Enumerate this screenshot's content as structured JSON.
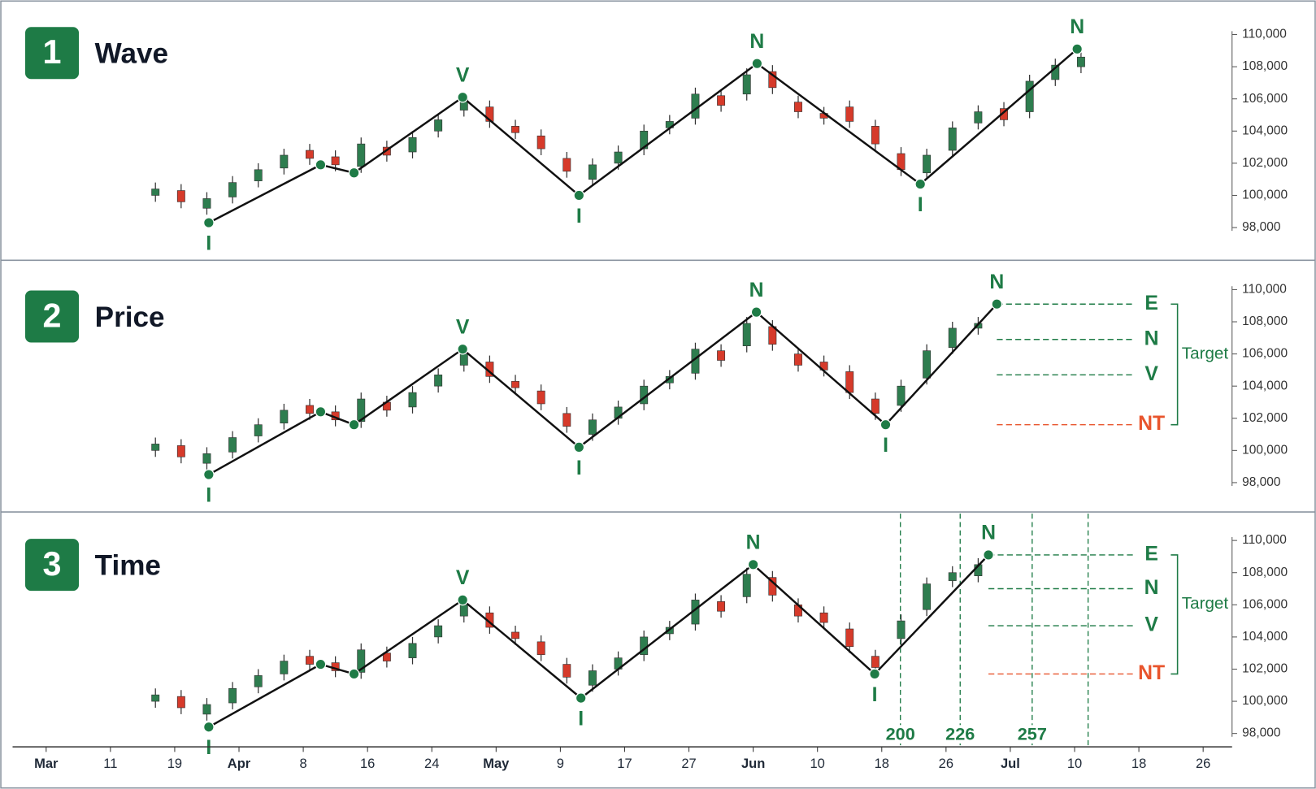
{
  "chart_data": [
    {
      "type": "candlestick",
      "number": "1",
      "title": "Wave",
      "xlim": [
        -0.5,
        18.45
      ],
      "ylim": [
        97500,
        110500
      ],
      "yticks": [
        {
          "value": 98000,
          "label": "98,000"
        },
        {
          "value": 100000,
          "label": "100,000"
        },
        {
          "value": 102000,
          "label": "102,000"
        },
        {
          "value": 104000,
          "label": "104,000"
        },
        {
          "value": 106000,
          "label": "106,000"
        },
        {
          "value": 108000,
          "label": "108,000"
        },
        {
          "value": 110000,
          "label": "110,000"
        }
      ],
      "up_color": "#2e7d4f",
      "down_color": "#d63a2a",
      "line_color": "#111111",
      "accent_color": "#1e7b46",
      "x": [
        1.7,
        2.1,
        2.5,
        2.9,
        3.3,
        3.7,
        4.1,
        4.5,
        4.9,
        5.3,
        5.7,
        6.1,
        6.5,
        6.9,
        7.3,
        7.7,
        8.1,
        8.5,
        8.9,
        9.3,
        9.7,
        10.1,
        10.5,
        10.9,
        11.3,
        11.7,
        12.1,
        12.5,
        12.9,
        13.3,
        13.7,
        14.1,
        14.5,
        14.9,
        15.3,
        15.7,
        16.1
      ],
      "open": [
        100000,
        100300,
        99200,
        99900,
        100900,
        101700,
        102800,
        102400,
        101800,
        103000,
        102700,
        104000,
        105300,
        105500,
        104300,
        103700,
        102300,
        101000,
        102000,
        102900,
        104200,
        104800,
        106200,
        106300,
        107700,
        105800,
        105100,
        105500,
        104300,
        102600,
        101400,
        102800,
        104500,
        105400,
        105200,
        107200,
        108000
      ],
      "high": [
        100800,
        100700,
        100200,
        101200,
        102000,
        102900,
        103200,
        102800,
        103600,
        103400,
        104000,
        105100,
        106400,
        105900,
        104700,
        104100,
        102700,
        102300,
        103100,
        104400,
        105000,
        106700,
        106600,
        107900,
        108100,
        106200,
        105500,
        105900,
        104700,
        103000,
        102900,
        104600,
        105600,
        105800,
        107500,
        108500,
        109000
      ],
      "low": [
        99600,
        99200,
        98800,
        99500,
        100500,
        101300,
        101900,
        101500,
        101400,
        102100,
        102300,
        103600,
        104900,
        104200,
        103500,
        102500,
        101100,
        100600,
        101600,
        102500,
        103800,
        104400,
        105200,
        105900,
        106300,
        104800,
        104400,
        104200,
        102800,
        101200,
        101000,
        102400,
        104100,
        104300,
        104800,
        106800,
        107600
      ],
      "close": [
        100400,
        99600,
        99800,
        100800,
        101600,
        102500,
        102300,
        101900,
        103200,
        102500,
        103600,
        104700,
        106000,
        104600,
        103900,
        102900,
        101500,
        101900,
        102700,
        104000,
        104600,
        106300,
        105600,
        107500,
        106700,
        105200,
        104800,
        104600,
        103200,
        101600,
        102500,
        104200,
        105200,
        104700,
        107100,
        108100,
        108600
      ],
      "wave": {
        "x": [
          2.53,
          4.27,
          4.79,
          6.48,
          8.29,
          11.06,
          13.6,
          16.04
        ],
        "y": [
          98300,
          101900,
          101400,
          106100,
          100000,
          108200,
          100700,
          109100
        ],
        "labels": [
          "I",
          null,
          null,
          "V",
          "I",
          "N",
          "I",
          "N"
        ]
      }
    },
    {
      "type": "candlestick",
      "number": "2",
      "title": "Price",
      "xlim": [
        -0.5,
        18.45
      ],
      "ylim": [
        97500,
        110500
      ],
      "yticks": [
        {
          "value": 98000,
          "label": "98,000"
        },
        {
          "value": 100000,
          "label": "100,000"
        },
        {
          "value": 102000,
          "label": "102,000"
        },
        {
          "value": 104000,
          "label": "104,000"
        },
        {
          "value": 106000,
          "label": "106,000"
        },
        {
          "value": 108000,
          "label": "108,000"
        },
        {
          "value": 110000,
          "label": "110,000"
        }
      ],
      "up_color": "#2e7d4f",
      "down_color": "#d63a2a",
      "line_color": "#111111",
      "accent_color": "#1e7b46",
      "x": [
        1.7,
        2.1,
        2.5,
        2.9,
        3.3,
        3.7,
        4.1,
        4.5,
        4.9,
        5.3,
        5.7,
        6.1,
        6.5,
        6.9,
        7.3,
        7.7,
        8.1,
        8.5,
        8.9,
        9.3,
        9.7,
        10.1,
        10.5,
        10.9,
        11.3,
        11.7,
        12.1,
        12.5,
        12.9,
        13.3,
        13.7,
        14.1,
        14.5
      ],
      "open": [
        100000,
        100300,
        99200,
        99900,
        100900,
        101700,
        102800,
        102400,
        101800,
        103000,
        102700,
        104000,
        105300,
        105500,
        104300,
        103700,
        102300,
        101000,
        102000,
        102900,
        104200,
        104800,
        106200,
        106500,
        107700,
        106000,
        105500,
        104900,
        103200,
        102800,
        104500,
        106400,
        107600
      ],
      "high": [
        100800,
        100700,
        100200,
        101200,
        102000,
        102900,
        103200,
        102800,
        103600,
        103400,
        104000,
        105100,
        106400,
        105900,
        104700,
        104100,
        102700,
        102300,
        103100,
        104400,
        105000,
        106700,
        106600,
        108300,
        108100,
        106400,
        105900,
        105300,
        103600,
        104400,
        106600,
        108000,
        108300
      ],
      "low": [
        99600,
        99200,
        98800,
        99500,
        100500,
        101300,
        101900,
        101500,
        101400,
        102100,
        102300,
        103600,
        104900,
        104200,
        103500,
        102500,
        101100,
        100600,
        101600,
        102500,
        103800,
        104400,
        105200,
        106100,
        106200,
        104900,
        104600,
        103200,
        101900,
        102400,
        104100,
        106000,
        107200
      ],
      "close": [
        100400,
        99600,
        99800,
        100800,
        101600,
        102500,
        102300,
        101900,
        103200,
        102500,
        103600,
        104700,
        106000,
        104600,
        103900,
        102900,
        101500,
        101900,
        102700,
        104000,
        104600,
        106300,
        105600,
        107900,
        106600,
        105300,
        105000,
        103600,
        102300,
        104000,
        106200,
        107600,
        107900
      ],
      "wave": {
        "x": [
          2.53,
          4.27,
          4.79,
          6.48,
          8.29,
          11.05,
          13.06,
          14.79
        ],
        "y": [
          98500,
          102400,
          101600,
          106300,
          100200,
          108600,
          101600,
          109100
        ],
        "labels": [
          "I",
          null,
          null,
          "V",
          "I",
          "N",
          "I",
          "N"
        ]
      },
      "targets": [
        {
          "label": "E",
          "value": 109100,
          "color": "#1e7b46"
        },
        {
          "label": "N",
          "value": 106900,
          "color": "#1e7b46"
        },
        {
          "label": "V",
          "value": 104700,
          "color": "#1e7b46"
        },
        {
          "label": "NT",
          "value": 101600,
          "color": "#e8552d"
        }
      ],
      "target_title": "Target"
    },
    {
      "type": "candlestick",
      "number": "3",
      "title": "Time",
      "xlim": [
        -0.5,
        18.45
      ],
      "ylim": [
        97500,
        110500
      ],
      "yticks": [
        {
          "value": 98000,
          "label": "98,000"
        },
        {
          "value": 100000,
          "label": "100,000"
        },
        {
          "value": 102000,
          "label": "102,000"
        },
        {
          "value": 104000,
          "label": "104,000"
        },
        {
          "value": 106000,
          "label": "106,000"
        },
        {
          "value": 108000,
          "label": "108,000"
        },
        {
          "value": 110000,
          "label": "110,000"
        }
      ],
      "xticks": [
        {
          "value": 0,
          "label": "Mar"
        },
        {
          "value": 1,
          "label": "11"
        },
        {
          "value": 2,
          "label": "19"
        },
        {
          "value": 3,
          "label": "Apr"
        },
        {
          "value": 4,
          "label": "8"
        },
        {
          "value": 5,
          "label": "16"
        },
        {
          "value": 6,
          "label": "24"
        },
        {
          "value": 7,
          "label": "May"
        },
        {
          "value": 8,
          "label": "9"
        },
        {
          "value": 9,
          "label": "17"
        },
        {
          "value": 10,
          "label": "27"
        },
        {
          "value": 11,
          "label": "Jun"
        },
        {
          "value": 12,
          "label": "10"
        },
        {
          "value": 13,
          "label": "18"
        },
        {
          "value": 14,
          "label": "26"
        },
        {
          "value": 15,
          "label": "Jul"
        },
        {
          "value": 16,
          "label": "10"
        },
        {
          "value": 17,
          "label": "18"
        },
        {
          "value": 18,
          "label": "26"
        }
      ],
      "up_color": "#2e7d4f",
      "down_color": "#d63a2a",
      "line_color": "#111111",
      "accent_color": "#1e7b46",
      "x": [
        1.7,
        2.1,
        2.5,
        2.9,
        3.3,
        3.7,
        4.1,
        4.5,
        4.9,
        5.3,
        5.7,
        6.1,
        6.5,
        6.9,
        7.3,
        7.7,
        8.1,
        8.5,
        8.9,
        9.3,
        9.7,
        10.1,
        10.5,
        10.9,
        11.3,
        11.7,
        12.1,
        12.5,
        12.9,
        13.3,
        13.7,
        14.1,
        14.5
      ],
      "open": [
        100000,
        100300,
        99200,
        99900,
        100900,
        101700,
        102800,
        102400,
        101800,
        103000,
        102700,
        104000,
        105300,
        105500,
        104300,
        103700,
        102300,
        101000,
        102000,
        102900,
        104200,
        104800,
        106200,
        106500,
        107700,
        106000,
        105500,
        104500,
        102800,
        103900,
        105700,
        107500,
        107800
      ],
      "high": [
        100800,
        100700,
        100200,
        101200,
        102000,
        102900,
        103200,
        102800,
        103600,
        103400,
        104000,
        105100,
        106400,
        105900,
        104700,
        104100,
        102700,
        102300,
        103100,
        104400,
        105000,
        106700,
        106600,
        108300,
        108100,
        106400,
        105900,
        104900,
        103200,
        105400,
        107700,
        108400,
        108900
      ],
      "low": [
        99600,
        99200,
        98800,
        99500,
        100500,
        101300,
        101900,
        101500,
        101400,
        102100,
        102300,
        103600,
        104900,
        104200,
        103500,
        102500,
        101100,
        100600,
        101600,
        102500,
        103800,
        104400,
        105200,
        106100,
        106200,
        104900,
        104500,
        103000,
        101700,
        103500,
        105300,
        107100,
        107400
      ],
      "close": [
        100400,
        99600,
        99800,
        100800,
        101600,
        102500,
        102300,
        101900,
        103200,
        102500,
        103600,
        104700,
        106000,
        104600,
        103900,
        102900,
        101500,
        101900,
        102700,
        104000,
        104600,
        106300,
        105600,
        107900,
        106600,
        105300,
        104900,
        103400,
        102100,
        105000,
        107300,
        108000,
        108500
      ],
      "wave": {
        "x": [
          2.53,
          4.27,
          4.79,
          6.48,
          8.32,
          11.0,
          12.89,
          14.66
        ],
        "y": [
          98400,
          102300,
          101700,
          106300,
          100200,
          108500,
          101700,
          109100
        ],
        "labels": [
          "I",
          null,
          null,
          "V",
          "I",
          "N",
          "I",
          "N"
        ]
      },
      "targets": [
        {
          "label": "E",
          "value": 109100,
          "color": "#1e7b46"
        },
        {
          "label": "N",
          "value": 107000,
          "color": "#1e7b46"
        },
        {
          "label": "V",
          "value": 104700,
          "color": "#1e7b46"
        },
        {
          "label": "NT",
          "value": 101700,
          "color": "#e8552d"
        }
      ],
      "target_title": "Target",
      "time_lines": [
        {
          "x": 13.29,
          "label": "200"
        },
        {
          "x": 14.22,
          "label": "226"
        },
        {
          "x": 15.34,
          "label": "257"
        },
        {
          "x": 16.21
        }
      ]
    }
  ]
}
